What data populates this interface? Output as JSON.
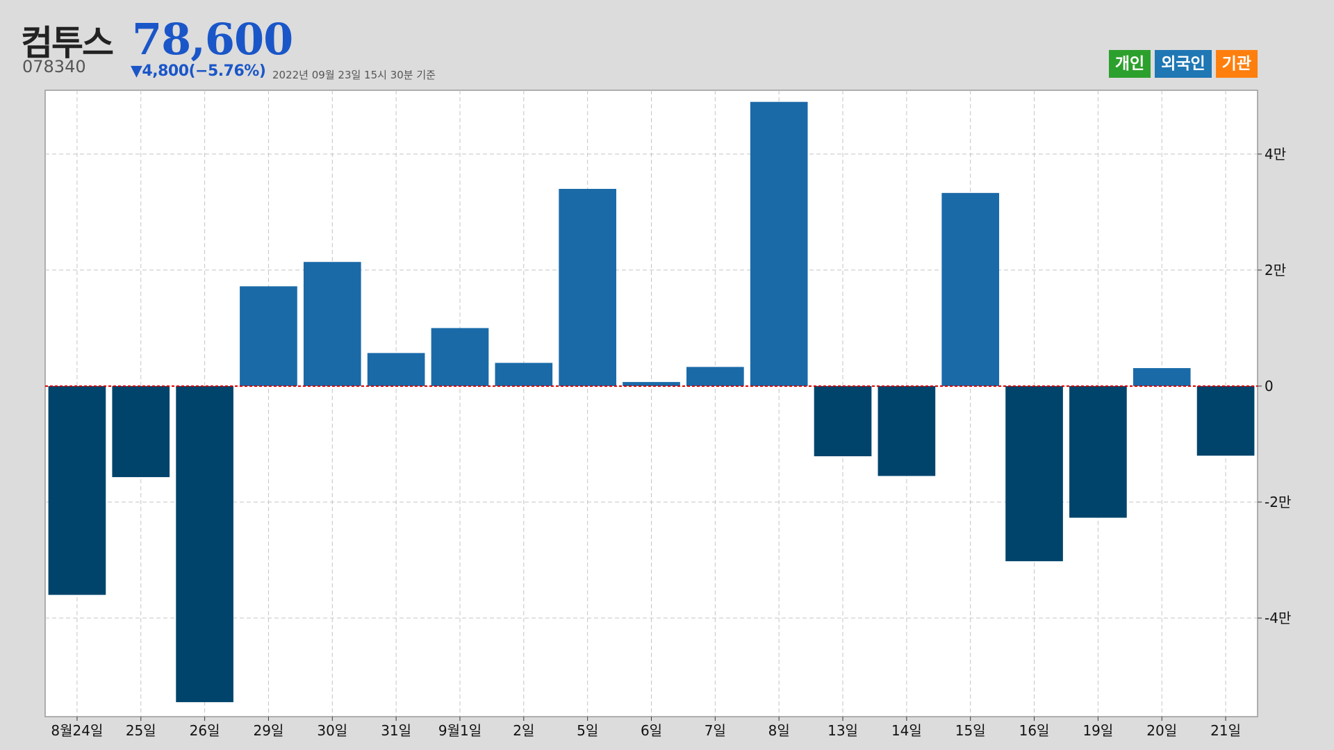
{
  "header": {
    "stock_name": "컴투스",
    "stock_price": "78,600",
    "stock_code": "078340",
    "change": "▼4,800(−5.76%)",
    "timestamp": "2022년 09월 23일 15시 30분 기준"
  },
  "investor_buttons": [
    {
      "label": "개인",
      "color": "#2ca02c"
    },
    {
      "label": "외국인",
      "color": "#1f77b4"
    },
    {
      "label": "기관",
      "color": "#ff7f0e"
    }
  ],
  "colors": {
    "positive_bar": "#1a6aa8",
    "negative_bar": "#00446c",
    "zero_line": "#e00000",
    "grid": "#c4c4c4",
    "plot_background": "#ffffff",
    "price_text": "#1a56c8"
  },
  "chart_data": {
    "type": "bar",
    "series_investor": "외국인",
    "categories": [
      "8월24일",
      "25일",
      "26일",
      "29일",
      "30일",
      "31일",
      "9월1일",
      "2일",
      "5일",
      "6일",
      "7일",
      "8일",
      "13일",
      "14일",
      "15일",
      "16일",
      "19일",
      "20일",
      "21일"
    ],
    "values": [
      -36000,
      -15700,
      -54500,
      17200,
      21400,
      5700,
      10000,
      4000,
      34000,
      700,
      3300,
      49000,
      -12100,
      -15500,
      33300,
      -30200,
      -22700,
      3100,
      -12000
    ],
    "ylim": [
      -57000,
      51000
    ],
    "yticks": [
      -40000,
      -20000,
      0,
      20000,
      40000
    ],
    "ytick_labels": [
      "-4만",
      "-2만",
      "0",
      "2만",
      "4만"
    ],
    "y_axis_side": "right",
    "grid": true,
    "zero_line": "dashed red"
  }
}
